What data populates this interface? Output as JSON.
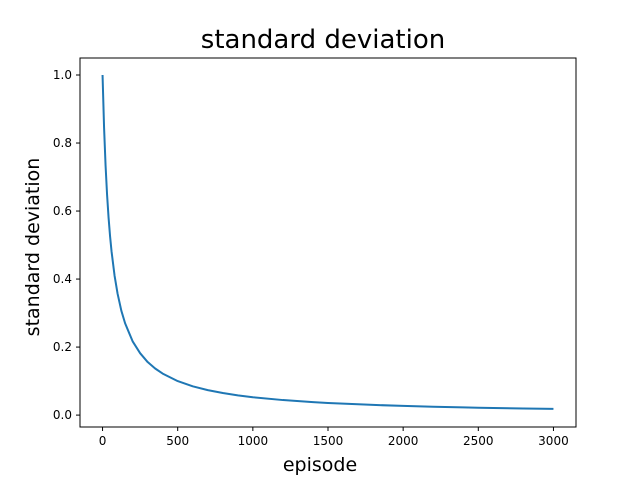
{
  "chart_data": {
    "type": "line",
    "title": "standard deviation",
    "xlabel": "episode",
    "ylabel": "standard deviation",
    "xlim": [
      -150,
      3150
    ],
    "ylim": [
      -0.035,
      1.05
    ],
    "xticks": [
      0,
      500,
      1000,
      1500,
      2000,
      2500,
      3000
    ],
    "xtick_labels": [
      "0",
      "500",
      "1000",
      "1500",
      "2000",
      "2500",
      "3000"
    ],
    "yticks": [
      0.0,
      0.2,
      0.4,
      0.6,
      0.8,
      1.0
    ],
    "ytick_labels": [
      "0.0",
      "0.2",
      "0.4",
      "0.6",
      "0.8",
      "1.0"
    ],
    "grid": false,
    "series": [
      {
        "color": "#1f77b4",
        "x": [
          0,
          10,
          20,
          30,
          40,
          50,
          60,
          80,
          100,
          125,
          150,
          200,
          250,
          300,
          350,
          400,
          500,
          600,
          700,
          800,
          900,
          1000,
          1200,
          1400,
          1500,
          1600,
          1800,
          2000,
          2200,
          2400,
          2500,
          2600,
          2800,
          3000
        ],
        "values": [
          1.0,
          0.847,
          0.735,
          0.649,
          0.581,
          0.526,
          0.481,
          0.41,
          0.357,
          0.307,
          0.27,
          0.217,
          0.182,
          0.156,
          0.137,
          0.122,
          0.1,
          0.0847,
          0.0735,
          0.0649,
          0.0581,
          0.0526,
          0.0442,
          0.0382,
          0.0357,
          0.0336,
          0.0299,
          0.027,
          0.0246,
          0.0226,
          0.0217,
          0.0209,
          0.0194,
          0.0182
        ]
      }
    ]
  }
}
